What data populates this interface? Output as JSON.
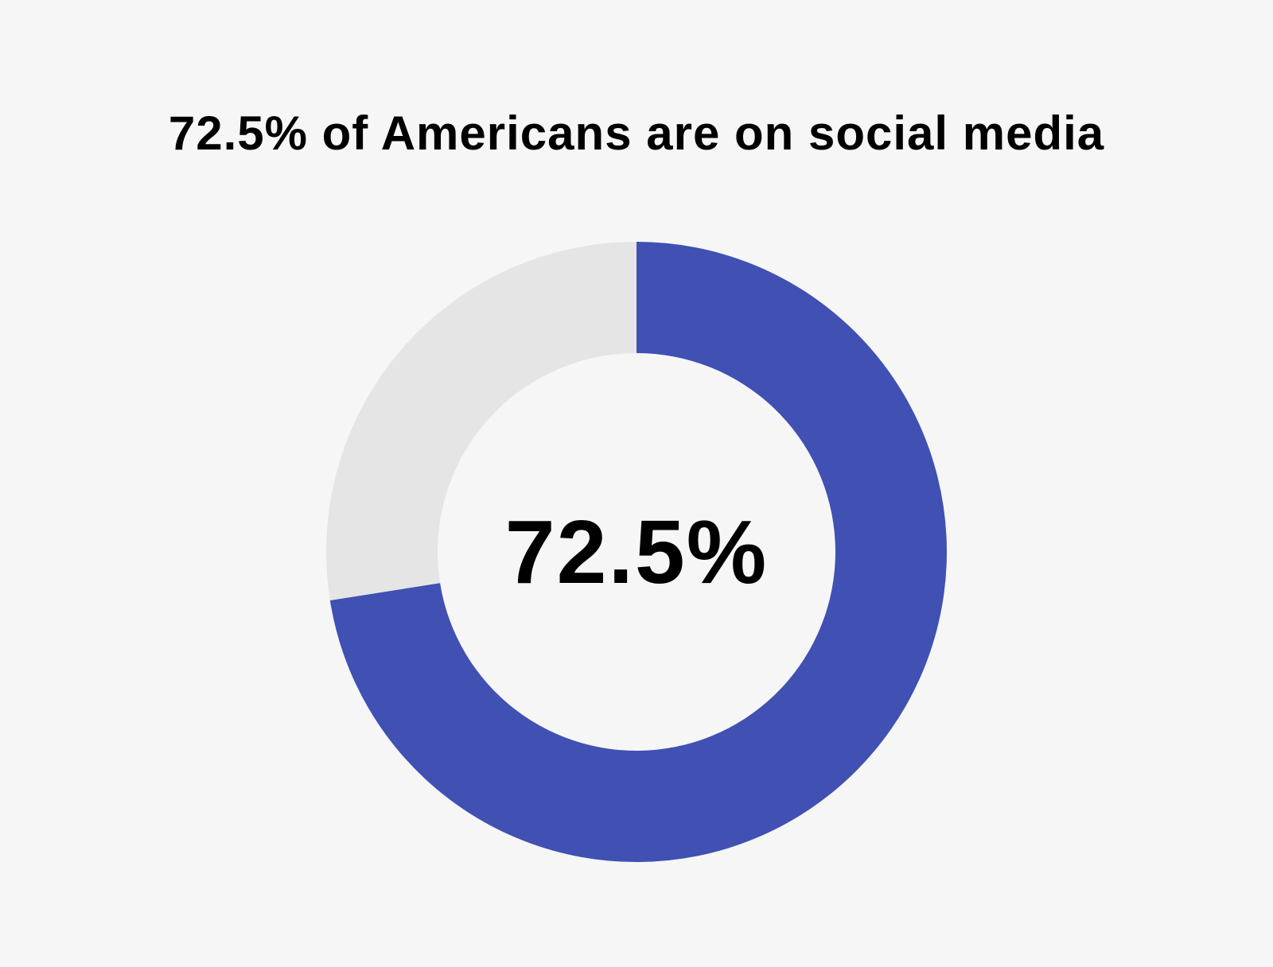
{
  "chart_data": {
    "type": "pie",
    "subtype": "donut",
    "title": "72.5% of Americans are on social media",
    "center_label": "72.5%",
    "slices": [
      {
        "value": 72.5,
        "color": "#4050b3"
      },
      {
        "value": 27.5,
        "color": "#e5e5e5"
      }
    ],
    "start_angle": "12 o'clock",
    "direction": "clockwise",
    "legend": "none"
  },
  "colors": {
    "background": "#f6f6f6",
    "text": "#000000"
  }
}
